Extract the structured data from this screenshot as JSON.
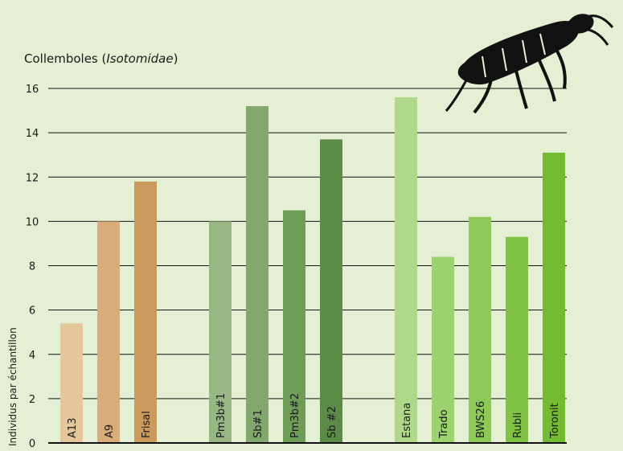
{
  "chart_data": {
    "type": "bar",
    "title": "Collemboles (",
    "title_italic": "Isotomidae",
    "title_suffix": ")",
    "ylabel": "Individus par échantillon",
    "xlabel": "",
    "ylim": [
      0,
      16
    ],
    "yticks": [
      "0",
      "2",
      "4",
      "6",
      "8",
      "10",
      "12",
      "14",
      "16"
    ],
    "grid": true,
    "categories": [
      "A13",
      "A9",
      "Frisal",
      "Pm3b#1",
      "Sb#1",
      "Pm3b#2",
      "Sb #2",
      "Estana",
      "Trado",
      "BWS26",
      "Rubli",
      "Toronit"
    ],
    "groups": [
      0,
      0,
      0,
      1,
      1,
      1,
      1,
      2,
      2,
      2,
      2,
      2
    ],
    "values": [
      5.4,
      10.0,
      11.8,
      10.0,
      15.2,
      10.5,
      13.7,
      15.6,
      8.4,
      10.2,
      9.3,
      13.1
    ],
    "colors": [
      "#e6c79c",
      "#d8ad7b",
      "#c99a5e",
      "#99b785",
      "#82a86d",
      "#6e9d58",
      "#5c8b47",
      "#b0d88a",
      "#9ed26f",
      "#8dc958",
      "#7fc244",
      "#74ba33"
    ],
    "icon": "springtail-insect-icon"
  }
}
